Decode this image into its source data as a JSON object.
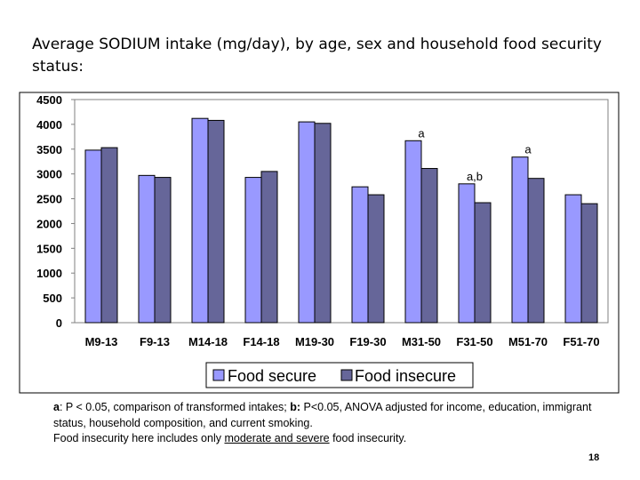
{
  "title": "Average SODIUM intake (mg/day), by age, sex and household food security status:",
  "chart_data": {
    "type": "bar",
    "title": "Average SODIUM intake (mg/day), by age, sex and household food security status:",
    "categories": [
      "M9-13",
      "F9-13",
      "M14-18",
      "F14-18",
      "M19-30",
      "F19-30",
      "M31-50",
      "F31-50",
      "M51-70",
      "F51-70"
    ],
    "series": [
      {
        "name": "Food secure",
        "color": "#9999ff",
        "values": [
          3480,
          2970,
          4120,
          2930,
          4050,
          2740,
          3670,
          2800,
          3340,
          2580
        ]
      },
      {
        "name": "Food insecure",
        "color": "#666699",
        "values": [
          3530,
          2930,
          4080,
          3050,
          4020,
          2580,
          3110,
          2420,
          2910,
          2400
        ]
      }
    ],
    "ylim": [
      0,
      4500
    ],
    "yticks": [
      "0",
      "500",
      "1000",
      "1500",
      "2000",
      "2500",
      "3000",
      "3500",
      "4000",
      "4500"
    ],
    "xlabel": "",
    "ylabel": "",
    "grid": false,
    "legend": "bottom",
    "annotations": [
      {
        "category": "M31-50",
        "label": "a"
      },
      {
        "category": "F31-50",
        "label": "a,b"
      },
      {
        "category": "M51-70",
        "label": "a"
      }
    ],
    "plot_background": "#ffffff",
    "frame_color": "#808080"
  },
  "footnote": {
    "a_label": "a",
    "a_text": ": P < 0.05, comparison of transformed intakes; ",
    "b_label": "b:",
    "b_text": " P<0.05, ANOVA adjusted for income, education, immigrant status, household composition, and current smoking.",
    "line2_pre": "Food insecurity here includes only ",
    "line2_underlined": "moderate and severe",
    "line2_post": " food insecurity."
  },
  "page_number": "18"
}
